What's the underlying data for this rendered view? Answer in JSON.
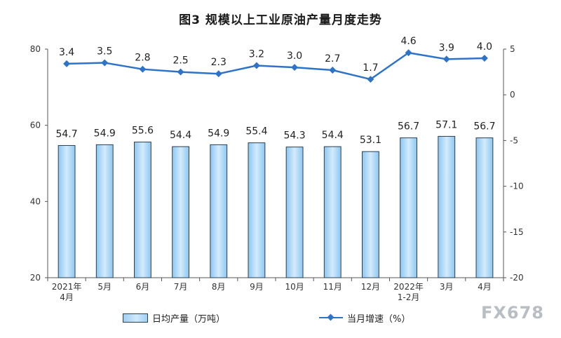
{
  "chart_data": {
    "type": "bar",
    "title": "图3  规模以上工业原油产量月度走势",
    "categories": [
      [
        "2021年",
        "4月"
      ],
      [
        "5月"
      ],
      [
        "6月"
      ],
      [
        "7月"
      ],
      [
        "8月"
      ],
      [
        "9月"
      ],
      [
        "10月"
      ],
      [
        "11月"
      ],
      [
        "12月"
      ],
      [
        "2022年",
        "1-2月"
      ],
      [
        "3月"
      ],
      [
        "4月"
      ]
    ],
    "series": [
      {
        "name": "日均产量（万吨）",
        "type": "bar",
        "axis": "left",
        "values": [
          54.7,
          54.9,
          55.6,
          54.4,
          54.9,
          55.4,
          54.3,
          54.4,
          53.1,
          56.7,
          57.1,
          56.7
        ],
        "labels": [
          "54.7",
          "54.9",
          "55.6",
          "54.4",
          "54.9",
          "55.4",
          "54.3",
          "54.4",
          "53.1",
          "56.7",
          "57.1",
          "56.7"
        ]
      },
      {
        "name": "当月增速（%）",
        "type": "line",
        "axis": "right",
        "values": [
          3.4,
          3.5,
          2.8,
          2.5,
          2.3,
          3.2,
          3.0,
          2.7,
          1.7,
          4.6,
          3.9,
          4.0
        ],
        "labels": [
          "3.4",
          "3.5",
          "2.8",
          "2.5",
          "2.3",
          "3.2",
          "3.0",
          "2.7",
          "1.7",
          "4.6",
          "3.9",
          "4.0"
        ]
      }
    ],
    "y_left": {
      "min": 20,
      "max": 80,
      "ticks": [
        "20",
        "40",
        "60",
        "80"
      ]
    },
    "y_right": {
      "min": -20,
      "max": 5,
      "ticks": [
        "-20",
        "-15",
        "-10",
        "-5",
        "0",
        "5"
      ]
    },
    "grid": false,
    "legend": "bottom",
    "colors": {
      "bar_fill": "#a8d4f5",
      "bar_edge": "#2c3e50",
      "line": "#2e73c8",
      "axis": "#555555"
    }
  },
  "legend": {
    "bars_label": "日均产量（万吨）",
    "line_label": "当月增速（%）"
  },
  "watermark": "FX678"
}
